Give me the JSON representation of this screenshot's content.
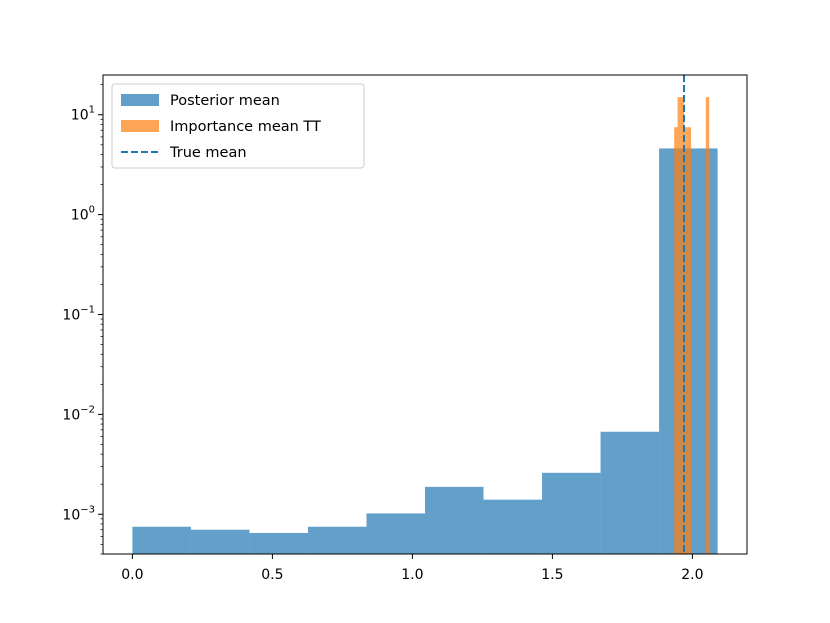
{
  "chart_data": {
    "type": "bar",
    "title": "",
    "xlabel": "",
    "ylabel": "",
    "yscale": "log",
    "xlim": [
      -0.105,
      2.195
    ],
    "ylim": [
      0.0004,
      25
    ],
    "grid": false,
    "legend_position": "top-left",
    "xticks": [
      {
        "value": 0.0,
        "label": "0.0"
      },
      {
        "value": 0.5,
        "label": "0.5"
      },
      {
        "value": 1.0,
        "label": "1.0"
      },
      {
        "value": 1.5,
        "label": "1.5"
      },
      {
        "value": 2.0,
        "label": "2.0"
      }
    ],
    "yticks": [
      {
        "value": 0.001,
        "base": "10",
        "exp": "−3"
      },
      {
        "value": 0.01,
        "base": "10",
        "exp": "−2"
      },
      {
        "value": 0.1,
        "base": "10",
        "exp": "−1"
      },
      {
        "value": 1,
        "base": "10",
        "exp": "0"
      },
      {
        "value": 10,
        "base": "10",
        "exp": "1"
      }
    ],
    "series": [
      {
        "name": "Posterior mean",
        "kind": "histogram",
        "color": "#1f77b4",
        "opacity": 0.7,
        "bin_edges": [
          0.0,
          0.209,
          0.418,
          0.627,
          0.836,
          1.045,
          1.254,
          1.463,
          1.672,
          1.881,
          2.09
        ],
        "values": [
          0.00075,
          0.0007,
          0.00065,
          0.00075,
          0.00102,
          0.00188,
          0.0014,
          0.0026,
          0.0067,
          4.6
        ]
      },
      {
        "name": "Importance mean TT",
        "kind": "histogram",
        "color": "#ff7f0e",
        "opacity": 0.7,
        "bin_edges": [
          1.935,
          1.947,
          1.959,
          1.971,
          1.983,
          1.995
        ],
        "values": [
          7.5,
          15,
          15,
          7.5,
          7.5
        ],
        "extra_bars": [
          {
            "x0": 2.048,
            "x1": 2.06,
            "value": 15
          }
        ]
      }
    ],
    "reference_lines": [
      {
        "name": "True mean",
        "x": 1.97,
        "color": "#1f77b4",
        "style": "dashed"
      }
    ]
  }
}
